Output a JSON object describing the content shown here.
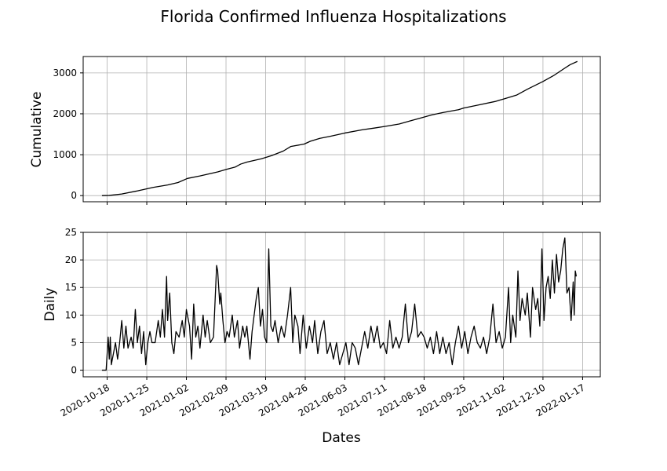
{
  "chart_data": {
    "title": "Florida Confirmed Influenza Hospitalizations",
    "xlabel": "Dates",
    "x_ticks": [
      "2020-10-18",
      "2020-11-25",
      "2021-01-02",
      "2021-02-09",
      "2021-03-19",
      "2021-04-26",
      "2021-06-03",
      "2021-07-11",
      "2021-08-18",
      "2021-09-25",
      "2021-11-02",
      "2021-12-10",
      "2022-01-17"
    ],
    "xlim": [
      "2020-09-25",
      "2022-01-34"
    ],
    "panels": [
      {
        "type": "line",
        "ylabel": "Cumulative",
        "ylim": [
          -150,
          3400
        ],
        "y_ticks": [
          0,
          1000,
          2000,
          3000
        ],
        "grid": true,
        "series": [
          {
            "points": [
              [
                "2020-10-13",
                0
              ],
              [
                "2020-10-20",
                5
              ],
              [
                "2020-11-01",
                40
              ],
              [
                "2020-11-15",
                110
              ],
              [
                "2020-12-01",
                200
              ],
              [
                "2020-12-15",
                260
              ],
              [
                "2020-12-25",
                320
              ],
              [
                "2021-01-03",
                420
              ],
              [
                "2021-01-15",
                480
              ],
              [
                "2021-02-01",
                580
              ],
              [
                "2021-02-09",
                640
              ],
              [
                "2021-02-18",
                700
              ],
              [
                "2021-02-23",
                770
              ],
              [
                "2021-03-01",
                820
              ],
              [
                "2021-03-15",
                900
              ],
              [
                "2021-03-25",
                980
              ],
              [
                "2021-04-05",
                1090
              ],
              [
                "2021-04-12",
                1200
              ],
              [
                "2021-04-25",
                1260
              ],
              [
                "2021-05-01",
                1330
              ],
              [
                "2021-05-10",
                1400
              ],
              [
                "2021-05-20",
                1450
              ],
              [
                "2021-06-03",
                1530
              ],
              [
                "2021-06-20",
                1610
              ],
              [
                "2021-07-01",
                1650
              ],
              [
                "2021-07-11",
                1690
              ],
              [
                "2021-07-25",
                1750
              ],
              [
                "2021-08-05",
                1830
              ],
              [
                "2021-08-18",
                1920
              ],
              [
                "2021-08-25",
                1970
              ],
              [
                "2021-09-05",
                2030
              ],
              [
                "2021-09-20",
                2100
              ],
              [
                "2021-09-25",
                2140
              ],
              [
                "2021-10-10",
                2220
              ],
              [
                "2021-10-25",
                2300
              ],
              [
                "2021-11-02",
                2360
              ],
              [
                "2021-11-15",
                2460
              ],
              [
                "2021-11-25",
                2600
              ],
              [
                "2021-12-10",
                2790
              ],
              [
                "2021-12-20",
                2930
              ],
              [
                "2021-12-30",
                3100
              ],
              [
                "2022-01-05",
                3200
              ],
              [
                "2022-01-12",
                3280
              ]
            ]
          }
        ]
      },
      {
        "type": "line",
        "ylabel": "Daily",
        "ylim": [
          -1.2,
          25
        ],
        "y_ticks": [
          0,
          5,
          10,
          15,
          20,
          25
        ],
        "grid": true,
        "series": [
          {
            "points": [
              [
                "2020-10-13",
                0
              ],
              [
                "2020-10-17",
                0
              ],
              [
                "2020-10-19",
                6
              ],
              [
                "2020-10-20",
                2
              ],
              [
                "2020-10-21",
                6
              ],
              [
                "2020-10-22",
                1
              ],
              [
                "2020-10-24",
                3
              ],
              [
                "2020-10-26",
                5
              ],
              [
                "2020-10-28",
                2
              ],
              [
                "2020-10-30",
                5
              ],
              [
                "2020-11-01",
                9
              ],
              [
                "2020-11-03",
                4
              ],
              [
                "2020-11-05",
                8
              ],
              [
                "2020-11-07",
                4
              ],
              [
                "2020-11-10",
                6
              ],
              [
                "2020-11-12",
                4
              ],
              [
                "2020-11-14",
                11
              ],
              [
                "2020-11-16",
                5
              ],
              [
                "2020-11-18",
                8
              ],
              [
                "2020-11-20",
                3
              ],
              [
                "2020-11-22",
                7
              ],
              [
                "2020-11-24",
                1
              ],
              [
                "2020-11-26",
                5
              ],
              [
                "2020-11-28",
                7
              ],
              [
                "2020-11-30",
                5
              ],
              [
                "2020-12-03",
                5
              ],
              [
                "2020-12-06",
                9
              ],
              [
                "2020-12-08",
                6
              ],
              [
                "2020-12-10",
                11
              ],
              [
                "2020-12-12",
                6
              ],
              [
                "2020-12-14",
                17
              ],
              [
                "2020-12-15",
                9
              ],
              [
                "2020-12-17",
                14
              ],
              [
                "2020-12-19",
                5
              ],
              [
                "2020-12-21",
                3
              ],
              [
                "2020-12-23",
                7
              ],
              [
                "2020-12-26",
                6
              ],
              [
                "2020-12-29",
                9
              ],
              [
                "2020-12-31",
                6
              ],
              [
                "2021-01-02",
                11
              ],
              [
                "2021-01-05",
                8
              ],
              [
                "2021-01-07",
                2
              ],
              [
                "2021-01-09",
                12
              ],
              [
                "2021-01-11",
                6
              ],
              [
                "2021-01-13",
                8
              ],
              [
                "2021-01-15",
                4
              ],
              [
                "2021-01-18",
                10
              ],
              [
                "2021-01-20",
                6
              ],
              [
                "2021-01-22",
                9
              ],
              [
                "2021-01-25",
                5
              ],
              [
                "2021-01-28",
                6
              ],
              [
                "2021-01-31",
                19
              ],
              [
                "2021-02-01",
                18
              ],
              [
                "2021-02-03",
                12
              ],
              [
                "2021-02-04",
                14
              ],
              [
                "2021-02-06",
                9
              ],
              [
                "2021-02-08",
                5
              ],
              [
                "2021-02-10",
                7
              ],
              [
                "2021-02-12",
                6
              ],
              [
                "2021-02-15",
                10
              ],
              [
                "2021-02-17",
                6
              ],
              [
                "2021-02-20",
                9
              ],
              [
                "2021-02-22",
                4
              ],
              [
                "2021-02-25",
                8
              ],
              [
                "2021-02-27",
                6
              ],
              [
                "2021-03-01",
                8
              ],
              [
                "2021-03-04",
                2
              ],
              [
                "2021-03-06",
                7
              ],
              [
                "2021-03-08",
                10
              ],
              [
                "2021-03-10",
                13
              ],
              [
                "2021-03-12",
                15
              ],
              [
                "2021-03-14",
                8
              ],
              [
                "2021-03-16",
                11
              ],
              [
                "2021-03-18",
                6
              ],
              [
                "2021-03-20",
                5
              ],
              [
                "2021-03-22",
                22
              ],
              [
                "2021-03-24",
                8
              ],
              [
                "2021-03-26",
                7
              ],
              [
                "2021-03-28",
                9
              ],
              [
                "2021-03-31",
                5
              ],
              [
                "2021-04-03",
                8
              ],
              [
                "2021-04-06",
                6
              ],
              [
                "2021-04-09",
                10
              ],
              [
                "2021-04-12",
                15
              ],
              [
                "2021-04-14",
                5
              ],
              [
                "2021-04-16",
                10
              ],
              [
                "2021-04-19",
                8
              ],
              [
                "2021-04-21",
                3
              ],
              [
                "2021-04-24",
                10
              ],
              [
                "2021-04-27",
                4
              ],
              [
                "2021-04-30",
                8
              ],
              [
                "2021-05-03",
                5
              ],
              [
                "2021-05-05",
                9
              ],
              [
                "2021-05-08",
                3
              ],
              [
                "2021-05-11",
                7
              ],
              [
                "2021-05-14",
                9
              ],
              [
                "2021-05-17",
                3
              ],
              [
                "2021-05-20",
                5
              ],
              [
                "2021-05-23",
                2
              ],
              [
                "2021-05-26",
                5
              ],
              [
                "2021-05-29",
                1
              ],
              [
                "2021-06-01",
                3
              ],
              [
                "2021-06-04",
                5
              ],
              [
                "2021-06-07",
                1
              ],
              [
                "2021-06-10",
                5
              ],
              [
                "2021-06-13",
                4
              ],
              [
                "2021-06-16",
                1
              ],
              [
                "2021-06-19",
                4
              ],
              [
                "2021-06-22",
                7
              ],
              [
                "2021-06-25",
                4
              ],
              [
                "2021-06-28",
                8
              ],
              [
                "2021-07-01",
                5
              ],
              [
                "2021-07-04",
                8
              ],
              [
                "2021-07-07",
                4
              ],
              [
                "2021-07-10",
                5
              ],
              [
                "2021-07-13",
                3
              ],
              [
                "2021-07-16",
                9
              ],
              [
                "2021-07-19",
                4
              ],
              [
                "2021-07-22",
                6
              ],
              [
                "2021-07-25",
                4
              ],
              [
                "2021-07-28",
                6
              ],
              [
                "2021-07-31",
                12
              ],
              [
                "2021-08-03",
                5
              ],
              [
                "2021-08-06",
                7
              ],
              [
                "2021-08-09",
                12
              ],
              [
                "2021-08-12",
                6
              ],
              [
                "2021-08-15",
                7
              ],
              [
                "2021-08-18",
                6
              ],
              [
                "2021-08-21",
                4
              ],
              [
                "2021-08-24",
                6
              ],
              [
                "2021-08-27",
                3
              ],
              [
                "2021-08-30",
                7
              ],
              [
                "2021-09-02",
                3
              ],
              [
                "2021-09-05",
                6
              ],
              [
                "2021-09-08",
                3
              ],
              [
                "2021-09-11",
                5
              ],
              [
                "2021-09-14",
                1
              ],
              [
                "2021-09-17",
                5
              ],
              [
                "2021-09-20",
                8
              ],
              [
                "2021-09-23",
                4
              ],
              [
                "2021-09-26",
                7
              ],
              [
                "2021-09-29",
                3
              ],
              [
                "2021-10-02",
                6
              ],
              [
                "2021-10-05",
                8
              ],
              [
                "2021-10-08",
                5
              ],
              [
                "2021-10-11",
                4
              ],
              [
                "2021-10-14",
                6
              ],
              [
                "2021-10-17",
                3
              ],
              [
                "2021-10-20",
                6
              ],
              [
                "2021-10-23",
                12
              ],
              [
                "2021-10-26",
                5
              ],
              [
                "2021-10-29",
                7
              ],
              [
                "2021-11-01",
                4
              ],
              [
                "2021-11-04",
                6
              ],
              [
                "2021-11-07",
                15
              ],
              [
                "2021-11-09",
                5
              ],
              [
                "2021-11-11",
                10
              ],
              [
                "2021-11-14",
                6
              ],
              [
                "2021-11-16",
                18
              ],
              [
                "2021-11-18",
                9
              ],
              [
                "2021-11-20",
                13
              ],
              [
                "2021-11-23",
                10
              ],
              [
                "2021-11-25",
                14
              ],
              [
                "2021-11-28",
                6
              ],
              [
                "2021-11-30",
                15
              ],
              [
                "2021-12-03",
                11
              ],
              [
                "2021-12-05",
                13
              ],
              [
                "2021-12-07",
                8
              ],
              [
                "2021-12-09",
                22
              ],
              [
                "2021-12-11",
                9
              ],
              [
                "2021-12-13",
                15
              ],
              [
                "2021-12-15",
                17
              ],
              [
                "2021-12-17",
                13
              ],
              [
                "2021-12-19",
                20
              ],
              [
                "2021-12-21",
                14
              ],
              [
                "2021-12-23",
                21
              ],
              [
                "2021-12-25",
                16
              ],
              [
                "2021-12-27",
                18
              ],
              [
                "2021-12-29",
                22
              ],
              [
                "2021-12-31",
                24
              ],
              [
                "2022-01-02",
                14
              ],
              [
                "2022-01-04",
                15
              ],
              [
                "2022-01-06",
                9
              ],
              [
                "2022-01-08",
                16
              ],
              [
                "2022-01-09",
                10
              ],
              [
                "2022-01-10",
                18
              ],
              [
                "2022-01-11",
                17
              ]
            ]
          }
        ]
      }
    ]
  }
}
